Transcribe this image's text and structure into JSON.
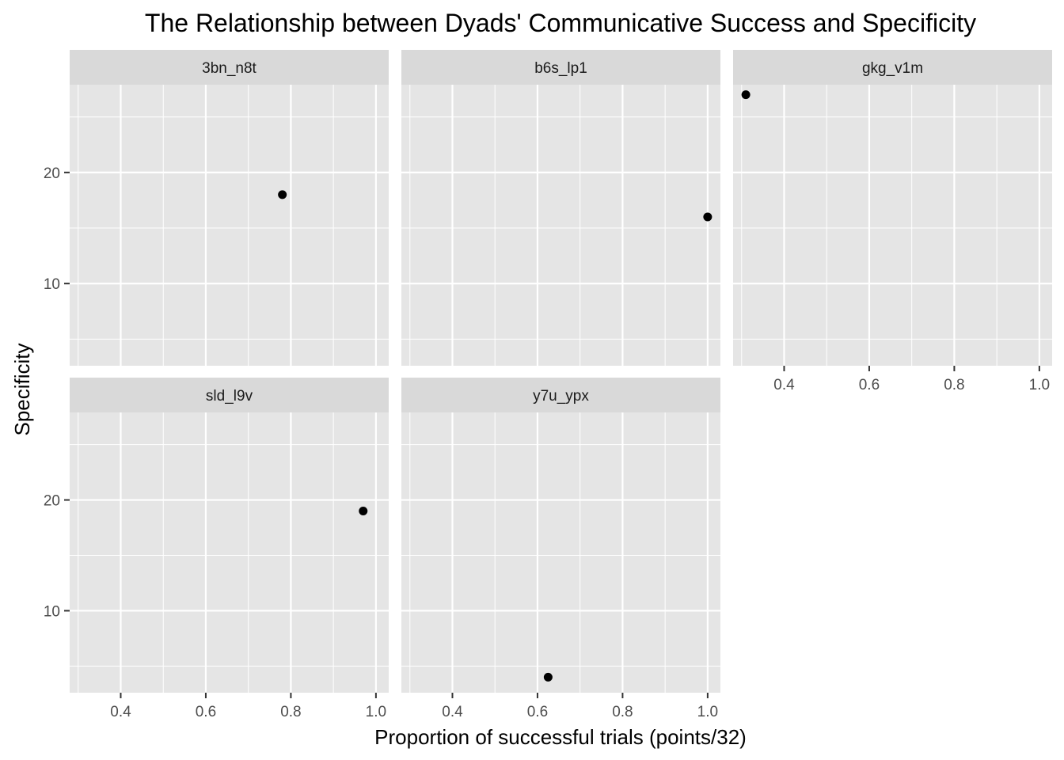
{
  "chart_data": {
    "type": "scatter",
    "title": "The Relationship between Dyads' Communicative Success and Specificity",
    "xlabel": "Proportion of successful trials (points/32)",
    "ylabel": "Specificity",
    "xlim": [
      0.28,
      1.03
    ],
    "ylim": [
      2.6,
      27.9
    ],
    "x_ticks": [
      0.4,
      0.6,
      0.8,
      1.0
    ],
    "x_tick_labels": [
      "0.4",
      "0.6",
      "0.8",
      "1.0"
    ],
    "x_minor_ticks": [
      0.3,
      0.5,
      0.7,
      0.9
    ],
    "y_ticks": [
      10,
      20
    ],
    "y_tick_labels": [
      "10",
      "20"
    ],
    "y_minor_ticks": [
      5,
      15,
      25
    ],
    "grid": true,
    "facets": [
      {
        "label": "3bn_n8t",
        "points": [
          {
            "x": 0.78,
            "y": 18
          }
        ]
      },
      {
        "label": "b6s_lp1",
        "points": [
          {
            "x": 1.0,
            "y": 16
          }
        ]
      },
      {
        "label": "gkg_v1m",
        "points": [
          {
            "x": 0.31,
            "y": 27
          }
        ]
      },
      {
        "label": "sld_l9v",
        "points": [
          {
            "x": 0.97,
            "y": 19
          }
        ]
      },
      {
        "label": "y7u_ypx",
        "points": [
          {
            "x": 0.625,
            "y": 4
          }
        ]
      }
    ],
    "colors": {
      "panel_background": "#e5e5e5",
      "strip_background": "#d9d9d9",
      "grid": "#ffffff",
      "point": "#000000",
      "tick": "#333333"
    }
  }
}
